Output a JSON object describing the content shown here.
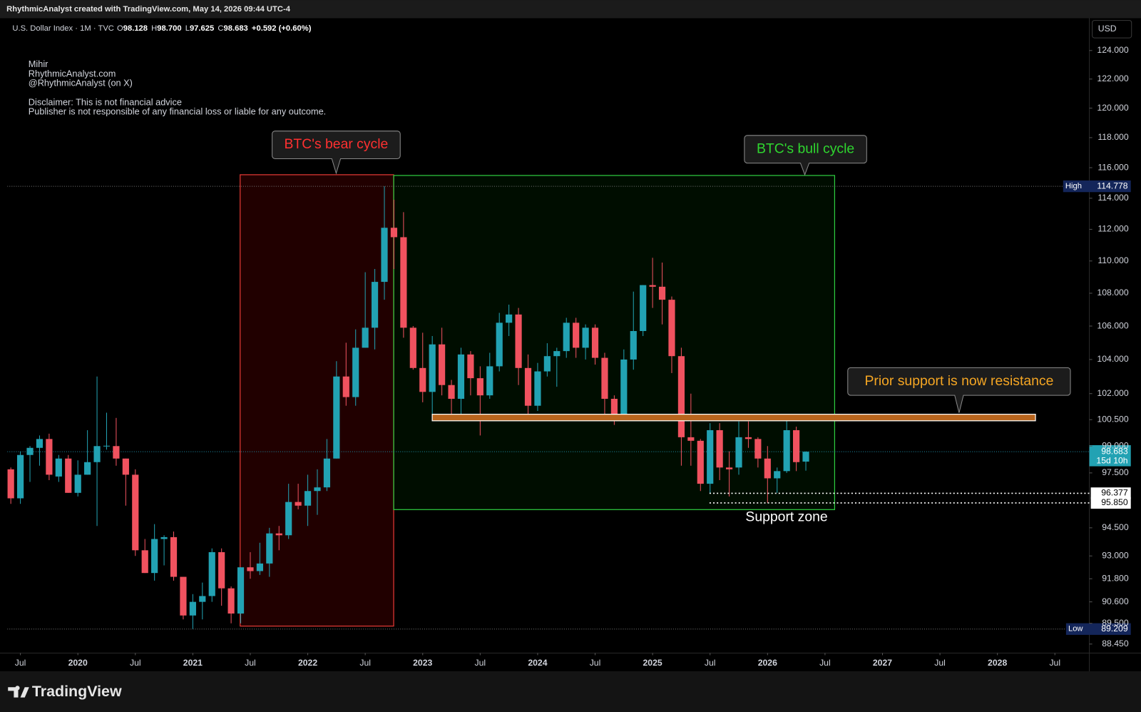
{
  "header": {
    "caption": "RhythmicAnalyst created with TradingView.com, May 14, 2026 09:44 UTC-4",
    "symbol": "U.S. Dollar Index · 1M · TVC",
    "legend": [
      {
        "key": "O",
        "value": "98.128"
      },
      {
        "key": "H",
        "value": "98.700"
      },
      {
        "key": "L",
        "value": "97.625"
      },
      {
        "key": "C",
        "value": "98.683"
      }
    ],
    "change": "+0.592 (+0.60%)",
    "currency": "USD"
  },
  "notes": [
    "Mihir",
    "RhythmicAnalyst.com",
    "@RhythmicAnalyst (on X)",
    "Disclaimer: This is not financial advice",
    "Publisher is not responsible of any financial loss or liable for any outcome."
  ],
  "annotations": [
    {
      "text": "BTC's bear cycle",
      "color": "#ff3030"
    },
    {
      "text": "BTC's bull cycle",
      "color": "#2fd62f"
    },
    {
      "text": "Prior support is now resistance",
      "color": "#f5a623"
    },
    {
      "text": "Support zone",
      "color": "#ffffff"
    }
  ],
  "footer": {
    "brand": "TradingView"
  },
  "chart_data": {
    "type": "candlestick",
    "log_scale": true,
    "grid": false,
    "up_color": "#22a2b3",
    "down_color": "#f0525f",
    "x": [
      "2019-06",
      "2019-07",
      "2019-08",
      "2019-09",
      "2019-10",
      "2019-11",
      "2019-12",
      "2020-01",
      "2020-02",
      "2020-03",
      "2020-04",
      "2020-05",
      "2020-06",
      "2020-07",
      "2020-08",
      "2020-09",
      "2020-10",
      "2020-11",
      "2020-12",
      "2021-01",
      "2021-02",
      "2021-03",
      "2021-04",
      "2021-05",
      "2021-06",
      "2021-07",
      "2021-08",
      "2021-09",
      "2021-10",
      "2021-11",
      "2021-12",
      "2022-01",
      "2022-02",
      "2022-03",
      "2022-04",
      "2022-05",
      "2022-06",
      "2022-07",
      "2022-08",
      "2022-09",
      "2022-10",
      "2022-11",
      "2022-12",
      "2023-01",
      "2023-02",
      "2023-03",
      "2023-04",
      "2023-05",
      "2023-06",
      "2023-07",
      "2023-08",
      "2023-09",
      "2023-10",
      "2023-11",
      "2023-12",
      "2024-01",
      "2024-02",
      "2024-03",
      "2024-04",
      "2024-05",
      "2024-06",
      "2024-07",
      "2024-08",
      "2024-09",
      "2024-10",
      "2024-11",
      "2024-12",
      "2025-01",
      "2025-02",
      "2025-03",
      "2025-04",
      "2025-05",
      "2025-06",
      "2025-07",
      "2025-08",
      "2025-09",
      "2025-10",
      "2025-11",
      "2025-12",
      "2026-01",
      "2026-02",
      "2026-03",
      "2026-04",
      "2026-05"
    ],
    "open": [
      97.7,
      96.1,
      98.5,
      98.9,
      99.4,
      97.3,
      98.3,
      96.4,
      97.4,
      98.1,
      99.0,
      99.0,
      98.3,
      97.4,
      93.3,
      92.1,
      93.9,
      94.0,
      91.9,
      89.9,
      90.6,
      90.9,
      93.2,
      91.3,
      90.0,
      92.4,
      92.2,
      92.6,
      94.2,
      94.1,
      95.9,
      95.7,
      96.5,
      96.7,
      98.3,
      103.0,
      101.8,
      104.7,
      105.9,
      108.7,
      112.1,
      111.5,
      105.9,
      103.5,
      102.1,
      104.9,
      102.5,
      101.7,
      104.3,
      102.9,
      101.9,
      103.6,
      106.2,
      106.7,
      103.5,
      101.3,
      103.3,
      104.2,
      104.5,
      106.2,
      104.7,
      105.9,
      104.1,
      101.7,
      100.8,
      104.0,
      105.7,
      108.5,
      108.4,
      107.6,
      104.2,
      99.5,
      99.3,
      96.9,
      99.9,
      97.8,
      97.8,
      99.5,
      99.4,
      98.3,
      97.2,
      97.6,
      99.9,
      98.128
    ],
    "high": [
      97.8,
      98.7,
      99.0,
      99.6,
      99.7,
      98.5,
      98.5,
      98.2,
      99.9,
      103.0,
      100.9,
      100.6,
      98.3,
      97.7,
      93.9,
      94.7,
      94.1,
      94.3,
      91.9,
      91.0,
      91.6,
      93.4,
      93.4,
      91.4,
      92.4,
      93.2,
      93.7,
      94.5,
      94.6,
      96.9,
      96.9,
      97.4,
      97.7,
      99.4,
      103.9,
      105.0,
      105.8,
      109.3,
      109.5,
      114.778,
      113.9,
      113.1,
      106.0,
      105.6,
      105.4,
      105.9,
      102.8,
      104.7,
      104.5,
      103.6,
      104.4,
      106.8,
      107.3,
      107.1,
      104.3,
      103.8,
      104.97,
      104.7,
      106.5,
      106.5,
      106.1,
      106.1,
      104.4,
      101.9,
      104.6,
      108.1,
      108.5,
      110.2,
      109.9,
      107.8,
      104.7,
      102.0,
      99.4,
      100.3,
      100.3,
      98.7,
      100.4,
      100.4,
      99.5,
      99.0,
      97.8,
      100.6,
      100.1,
      98.7
    ],
    "low": [
      95.8,
      95.8,
      97.0,
      97.9,
      97.1,
      97.0,
      96.4,
      96.2,
      97.4,
      94.6,
      98.8,
      97.9,
      95.7,
      93.0,
      92.1,
      91.7,
      92.5,
      91.7,
      89.7,
      89.209,
      89.7,
      90.6,
      90.4,
      89.5,
      89.5,
      91.8,
      92.0,
      91.9,
      93.3,
      93.9,
      95.5,
      94.6,
      95.2,
      96.5,
      98.3,
      101.3,
      101.3,
      104.7,
      104.6,
      107.6,
      109.5,
      105.3,
      103.4,
      101.5,
      100.8,
      101.9,
      100.8,
      100.8,
      101.9,
      99.6,
      101.7,
      103.3,
      105.4,
      102.5,
      100.6,
      101.0,
      103.0,
      102.4,
      104.1,
      104.1,
      104.0,
      103.7,
      100.5,
      100.2,
      100.6,
      103.4,
      105.4,
      107.1,
      106.1,
      103.2,
      97.9,
      97.9,
      96.5,
      96.377,
      97.1,
      96.2,
      97.4,
      98.9,
      97.8,
      95.85,
      96.4,
      97.5,
      97.6,
      97.625
    ],
    "close": [
      96.1,
      98.5,
      98.9,
      99.4,
      97.4,
      98.3,
      96.4,
      97.4,
      98.1,
      99.0,
      99.02,
      98.3,
      97.4,
      93.3,
      92.1,
      93.9,
      94.0,
      91.9,
      89.9,
      90.6,
      90.9,
      93.2,
      91.3,
      90.0,
      92.4,
      92.2,
      92.6,
      94.2,
      94.1,
      95.9,
      95.7,
      96.5,
      96.7,
      98.3,
      103.0,
      101.8,
      104.7,
      105.9,
      108.7,
      112.1,
      111.5,
      105.9,
      103.5,
      102.1,
      104.9,
      102.5,
      101.7,
      104.3,
      102.9,
      101.9,
      103.6,
      106.2,
      106.7,
      103.5,
      101.3,
      103.3,
      104.2,
      104.5,
      106.2,
      104.7,
      105.9,
      104.1,
      101.7,
      100.8,
      104.0,
      105.7,
      108.5,
      108.4,
      107.6,
      104.2,
      99.5,
      99.3,
      96.9,
      99.9,
      97.8,
      97.7,
      99.5,
      99.4,
      98.3,
      97.2,
      97.6,
      99.9,
      98.1,
      98.683
    ],
    "xlim": [
      "2019-05",
      "2028-09"
    ],
    "xticks": [
      {
        "value": "2019-07",
        "label": "Jul"
      },
      {
        "value": "2020-01",
        "label": "2020"
      },
      {
        "value": "2020-07",
        "label": "Jul"
      },
      {
        "value": "2021-01",
        "label": "2021"
      },
      {
        "value": "2021-07",
        "label": "Jul"
      },
      {
        "value": "2022-01",
        "label": "2022"
      },
      {
        "value": "2022-07",
        "label": "Jul"
      },
      {
        "value": "2023-01",
        "label": "2023"
      },
      {
        "value": "2023-07",
        "label": "Jul"
      },
      {
        "value": "2024-01",
        "label": "2024"
      },
      {
        "value": "2024-07",
        "label": "Jul"
      },
      {
        "value": "2025-01",
        "label": "2025"
      },
      {
        "value": "2025-07",
        "label": "Jul"
      },
      {
        "value": "2026-01",
        "label": "2026"
      },
      {
        "value": "2026-07",
        "label": "Jul"
      },
      {
        "value": "2027-01",
        "label": "2027"
      },
      {
        "value": "2027-07",
        "label": "Jul"
      },
      {
        "value": "2028-01",
        "label": "2028"
      },
      {
        "value": "2028-07",
        "label": "Jul"
      }
    ],
    "ylim": [
      88,
      126.3
    ],
    "yticks": [
      {
        "value": 124,
        "label": "124.000"
      },
      {
        "value": 122,
        "label": "122.000"
      },
      {
        "value": 120,
        "label": "120.000"
      },
      {
        "value": 118,
        "label": "118.000"
      },
      {
        "value": 116,
        "label": "116.000"
      },
      {
        "value": 114,
        "label": "114.000"
      },
      {
        "value": 112,
        "label": "112.000"
      },
      {
        "value": 110,
        "label": "110.000"
      },
      {
        "value": 108,
        "label": "108.000"
      },
      {
        "value": 106,
        "label": "106.000"
      },
      {
        "value": 104,
        "label": "104.000"
      },
      {
        "value": 102,
        "label": "102.000"
      },
      {
        "value": 100.5,
        "label": "100.500"
      },
      {
        "value": 99,
        "label": "99.000"
      },
      {
        "value": 97.5,
        "label": "97.500"
      },
      {
        "value": 94.5,
        "label": "94.500"
      },
      {
        "value": 93,
        "label": "93.000"
      },
      {
        "value": 91.8,
        "label": "91.800"
      },
      {
        "value": 90.6,
        "label": "90.600"
      },
      {
        "value": 89.5,
        "label": "89.500"
      },
      {
        "value": 88.45,
        "label": "88.450"
      }
    ],
    "high_marker": {
      "text": "High",
      "value": 114.778,
      "label": "114.778"
    },
    "low_marker": {
      "text": "Low",
      "value": 89.209,
      "label": "89.209"
    },
    "last_price": {
      "value": 98.683,
      "label": "98.683",
      "countdown": "15d 10h"
    },
    "support_levels": [
      {
        "value": 96.377,
        "label": "96.377"
      },
      {
        "value": 95.85,
        "label": "95.850"
      }
    ]
  }
}
